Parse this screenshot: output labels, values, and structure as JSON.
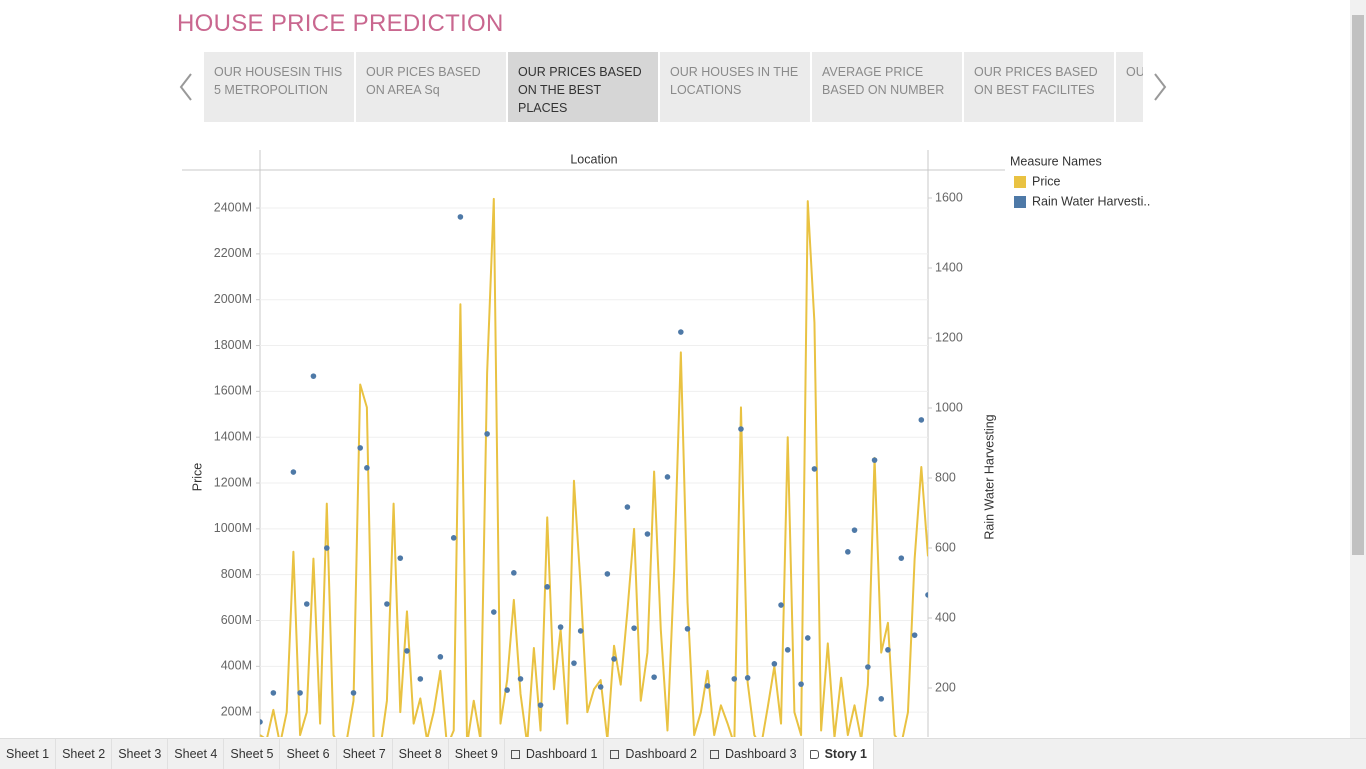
{
  "header": {
    "title": "HOUSE PRICE PREDICTION"
  },
  "story": {
    "points": [
      "OUR HOUSESIN THIS 5 METROPOLITION",
      "OUR PICES BASED ON AREA Sq",
      "OUR PRICES BASED ON THE BEST PLACES",
      "OUR HOUSES IN THE LOCATIONS",
      "AVERAGE PRICE BASED ON NUMBER",
      "OUR PRICES BASED ON BEST FACILITES",
      "OU BSI"
    ],
    "selected": 2
  },
  "chart_data": {
    "type": "line",
    "x_label": "Location",
    "y_label": "Price",
    "y2_label": "Rain Water Harvesting",
    "legend_title": "Measure Names",
    "categories": [
      null,
      null,
      null,
      null,
      null,
      null,
      null,
      null,
      null,
      null,
      null,
      null,
      null,
      null,
      null,
      null,
      null,
      null,
      null,
      null,
      null,
      null,
      null,
      null,
      null,
      null,
      null,
      null,
      null,
      null,
      null,
      null,
      null,
      null,
      null,
      null,
      null,
      null,
      null,
      null,
      null,
      null,
      null,
      null,
      null,
      null,
      null,
      null,
      null,
      null,
      null,
      null,
      null,
      null,
      null,
      null,
      null,
      null,
      null,
      null,
      null,
      null,
      null,
      null,
      null,
      null,
      null,
      null,
      null,
      null,
      null,
      null,
      null,
      null,
      null,
      null,
      null,
      null,
      null,
      null,
      null,
      null,
      null,
      null,
      null,
      null,
      null,
      null,
      null,
      null,
      null,
      null,
      null,
      null,
      null,
      null,
      null,
      null,
      null,
      null,
      null
    ],
    "series": [
      {
        "name": "Price",
        "color": "#e9c242",
        "mark": "line",
        "values": [
          100000000.0,
          80000000.0,
          210000000.0,
          60000000.0,
          200000000.0,
          900000000.0,
          100000000.0,
          200000000.0,
          870000000.0,
          150000000.0,
          1110000000.0,
          100000000.0,
          50000000.0,
          80000000.0,
          250000000.0,
          1630000000.0,
          1530000000.0,
          90000000.0,
          40000000.0,
          250000000.0,
          1110000000.0,
          200000000.0,
          640000000.0,
          150000000.0,
          260000000.0,
          80000000.0,
          200000000.0,
          380000000.0,
          50000000.0,
          120000000.0,
          1980000000.0,
          60000000.0,
          250000000.0,
          80000000.0,
          1680000000.0,
          2440000000.0,
          150000000.0,
          340000000.0,
          690000000.0,
          280000000.0,
          60000000.0,
          480000000.0,
          120000000.0,
          1050000000.0,
          300000000.0,
          560000000.0,
          150000000.0,
          1210000000.0,
          750000000.0,
          200000000.0,
          300000000.0,
          340000000.0,
          80000000.0,
          490000000.0,
          320000000.0,
          640000000.0,
          1000000000.0,
          250000000.0,
          460000000.0,
          1250000000.0,
          560000000.0,
          120000000.0,
          820000000.0,
          1770000000.0,
          680000000.0,
          100000000.0,
          200000000.0,
          380000000.0,
          100000000.0,
          230000000.0,
          150000000.0,
          60000000.0,
          1530000000.0,
          330000000.0,
          100000000.0,
          50000000.0,
          220000000.0,
          400000000.0,
          150000000.0,
          1400000000.0,
          200000000.0,
          100000000.0,
          2430000000.0,
          1900000000.0,
          120000000.0,
          500000000.0,
          90000000.0,
          350000000.0,
          100000000.0,
          230000000.0,
          80000000.0,
          320000000.0,
          1310000000.0,
          460000000.0,
          590000000.0,
          100000000.0,
          60000000.0,
          200000000.0,
          870000000.0,
          1270000000.0,
          880000000.0
        ]
      },
      {
        "name": "Rain Water Harvesti..",
        "color": "#4e79a7",
        "mark": "scatter",
        "axis": "y2",
        "values": [
          103,
          null,
          186,
          null,
          null,
          817,
          186,
          440,
          1091,
          null,
          600,
          null,
          null,
          null,
          186,
          886,
          829,
          null,
          null,
          440,
          null,
          571,
          306,
          null,
          226,
          null,
          null,
          289,
          null,
          629,
          1546,
          null,
          null,
          null,
          926,
          417,
          null,
          194,
          529,
          226,
          null,
          null,
          151,
          489,
          null,
          374,
          null,
          271,
          363,
          null,
          null,
          203,
          526,
          283,
          null,
          717,
          371,
          null,
          640,
          231,
          null,
          803,
          null,
          1217,
          369,
          null,
          null,
          206,
          null,
          null,
          null,
          226,
          940,
          229,
          null,
          null,
          null,
          269,
          437,
          309,
          null,
          211,
          343,
          826,
          null,
          null,
          null,
          null,
          589,
          651,
          null,
          260,
          851,
          169,
          309,
          null,
          571,
          null,
          351,
          966,
          466
        ]
      }
    ],
    "ylim": [
      0,
      2566000000
    ],
    "yticks": [
      {
        "value": 200000000.0,
        "label": "200M"
      },
      {
        "value": 400000000.0,
        "label": "400M"
      },
      {
        "value": 600000000.0,
        "label": "600M"
      },
      {
        "value": 800000000.0,
        "label": "800M"
      },
      {
        "value": 1000000000.0,
        "label": "1000M"
      },
      {
        "value": 1200000000.0,
        "label": "1200M"
      },
      {
        "value": 1400000000.0,
        "label": "1400M"
      },
      {
        "value": 1600000000.0,
        "label": "1600M"
      },
      {
        "value": 1800000000.0,
        "label": "1800M"
      },
      {
        "value": 2000000000.0,
        "label": "2000M"
      },
      {
        "value": 2200000000.0,
        "label": "2200M"
      },
      {
        "value": 2400000000.0,
        "label": "2400M"
      }
    ],
    "y2lim": [
      0,
      1680
    ],
    "y2ticks": [
      200,
      400,
      600,
      800,
      1000,
      1200,
      1400,
      1600
    ],
    "grid": true
  },
  "tabs": {
    "sheets": [
      "Sheet 1",
      "Sheet 2",
      "Sheet 3",
      "Sheet 4",
      "Sheet 5",
      "Sheet 6",
      "Sheet 7",
      "Sheet 8",
      "Sheet 9"
    ],
    "dashboards": [
      "Dashboard 1",
      "Dashboard 2",
      "Dashboard 3"
    ],
    "stories": [
      "Story 1"
    ],
    "active": "Story 1"
  }
}
